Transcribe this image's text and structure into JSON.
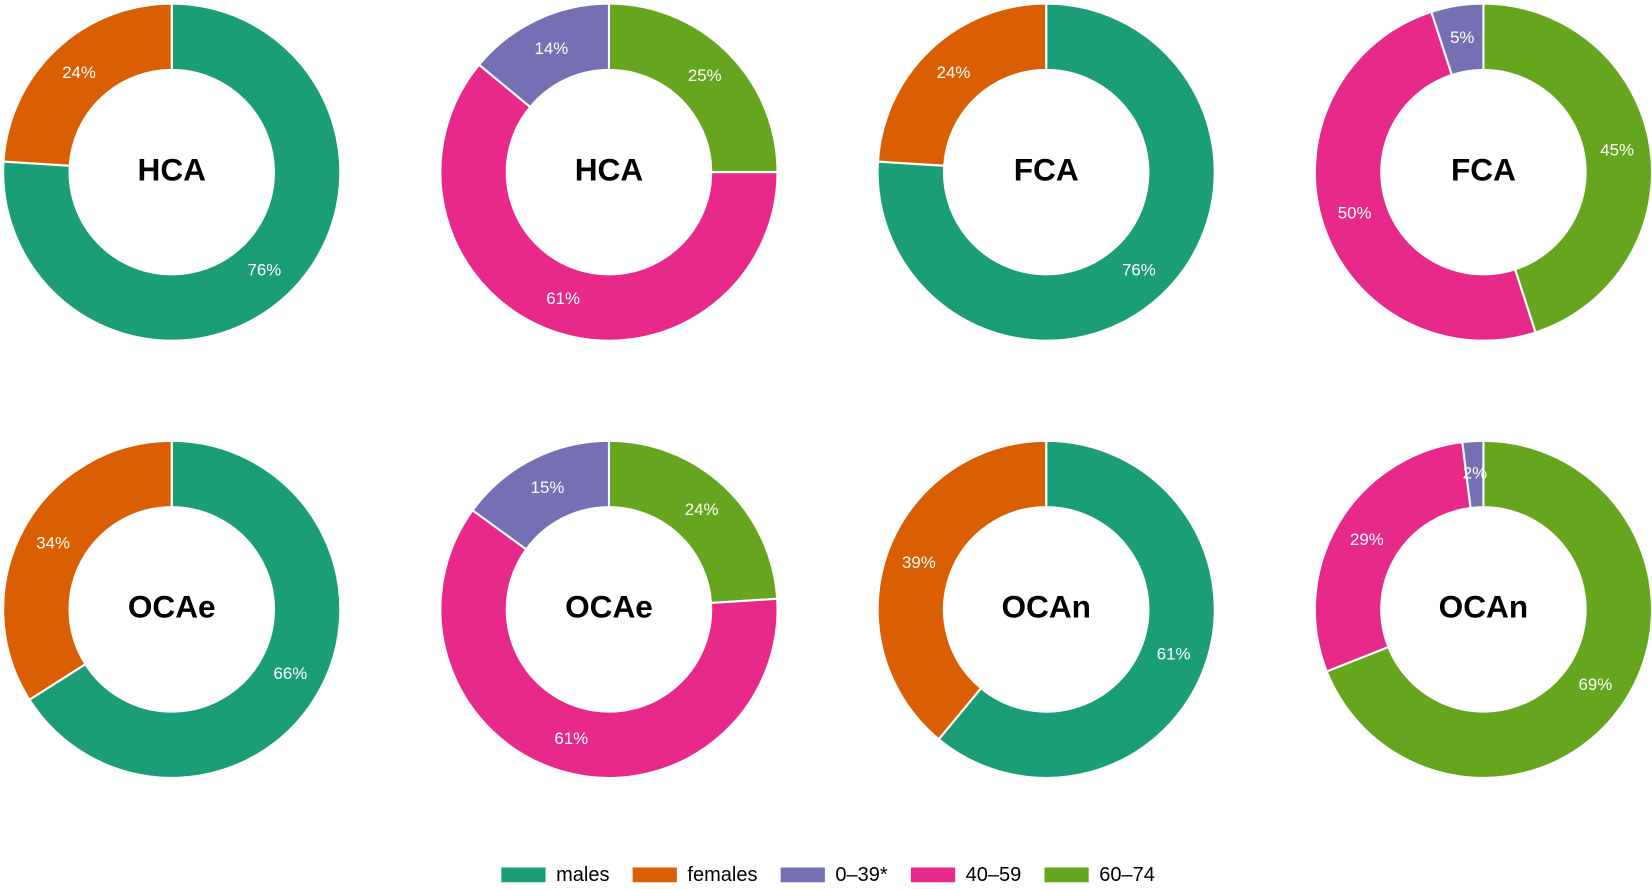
{
  "chart_data": [
    {
      "type": "donut",
      "label": "HCA",
      "categories": [
        "males",
        "females"
      ],
      "values": [
        76,
        24
      ],
      "value_labels": [
        "76%",
        "24%"
      ],
      "colors": [
        "#1b9e77",
        "#d95f02"
      ]
    },
    {
      "type": "donut",
      "label": "HCA",
      "categories": [
        "60–74",
        "40–59",
        "0–39*"
      ],
      "values": [
        25,
        61,
        14
      ],
      "value_labels": [
        "25%",
        "61%",
        "14%"
      ],
      "colors": [
        "#66a61e",
        "#e7298a",
        "#7570b3"
      ]
    },
    {
      "type": "donut",
      "label": "FCA",
      "categories": [
        "males",
        "females"
      ],
      "values": [
        76,
        24
      ],
      "value_labels": [
        "76%",
        "24%"
      ],
      "colors": [
        "#1b9e77",
        "#d95f02"
      ]
    },
    {
      "type": "donut",
      "label": "FCA",
      "categories": [
        "60–74",
        "40–59",
        "0–39*"
      ],
      "values": [
        45,
        50,
        5
      ],
      "value_labels": [
        "45%",
        "50%",
        "5%"
      ],
      "colors": [
        "#66a61e",
        "#e7298a",
        "#7570b3"
      ]
    },
    {
      "type": "donut",
      "label": "OCAe",
      "categories": [
        "males",
        "females"
      ],
      "values": [
        66,
        34
      ],
      "value_labels": [
        "66%",
        "34%"
      ],
      "colors": [
        "#1b9e77",
        "#d95f02"
      ]
    },
    {
      "type": "donut",
      "label": "OCAe",
      "categories": [
        "60–74",
        "40–59",
        "0–39*"
      ],
      "values": [
        24,
        61,
        15
      ],
      "value_labels": [
        "24%",
        "61%",
        "15%"
      ],
      "colors": [
        "#66a61e",
        "#e7298a",
        "#7570b3"
      ]
    },
    {
      "type": "donut",
      "label": "OCAn",
      "categories": [
        "males",
        "females"
      ],
      "values": [
        61,
        39
      ],
      "value_labels": [
        "61%",
        "39%"
      ],
      "colors": [
        "#1b9e77",
        "#d95f02"
      ]
    },
    {
      "type": "donut",
      "label": "OCAn",
      "categories": [
        "60–74",
        "40–59",
        "0–39*"
      ],
      "values": [
        69,
        29,
        2
      ],
      "value_labels": [
        "69%",
        "29%",
        "2%"
      ],
      "colors": [
        "#66a61e",
        "#e7298a",
        "#7570b3"
      ]
    }
  ],
  "legend": [
    {
      "name": "males",
      "color": "#1b9e77"
    },
    {
      "name": "females",
      "color": "#d95f02"
    },
    {
      "name": "0–39*",
      "color": "#7570b3"
    },
    {
      "name": "40–59",
      "color": "#e7298a"
    },
    {
      "name": "60–74",
      "color": "#66a61e"
    }
  ]
}
